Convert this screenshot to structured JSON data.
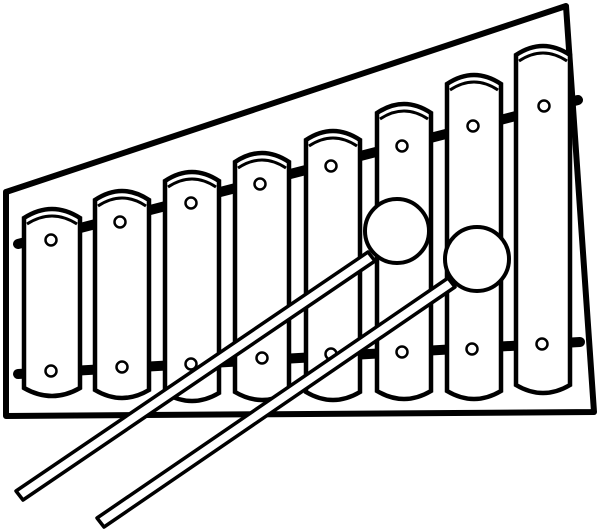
{
  "illustration": {
    "subject": "xylophone-with-mallets",
    "style": "black-outline-coloring-page",
    "colors": {
      "ink": "#000000",
      "fill": "#ffffff"
    },
    "bar_count": 8,
    "mallet_count": 2
  }
}
